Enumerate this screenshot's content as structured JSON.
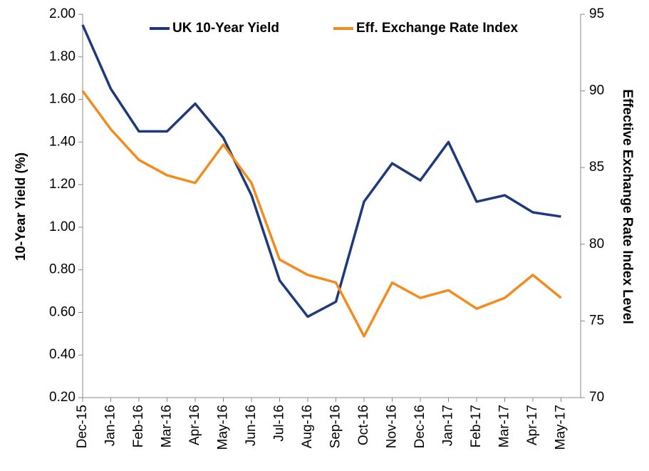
{
  "chart_data": {
    "type": "line",
    "categories": [
      "Dec-15",
      "Jan-16",
      "Feb-16",
      "Mar-16",
      "Apr-16",
      "May-16",
      "Jun-16",
      "Jul-16",
      "Aug-16",
      "Sep-16",
      "Oct-16",
      "Nov-16",
      "Dec-16",
      "Jan-17",
      "Feb-17",
      "Mar-17",
      "Apr-17",
      "May-17"
    ],
    "series": [
      {
        "name": "UK 10-Year Yield",
        "color": "#1f3a7a",
        "axis": "y",
        "values": [
          1.95,
          1.65,
          1.45,
          1.45,
          1.58,
          1.42,
          1.15,
          0.75,
          0.58,
          0.65,
          1.12,
          1.3,
          1.22,
          1.4,
          1.12,
          1.15,
          1.07,
          1.05
        ]
      },
      {
        "name": "Eff. Exchange Rate Index",
        "color": "#f28c1e",
        "axis": "y2",
        "values": [
          90,
          87.5,
          85.5,
          84.5,
          84,
          86.5,
          84,
          79,
          78,
          77.5,
          74,
          77.5,
          76.5,
          77,
          75.8,
          76.5,
          78,
          76.5
        ]
      }
    ],
    "ylabel": "10-Year Yield (%)",
    "y2label": "Effective Exchange Rate Index Level",
    "ylim": [
      0.2,
      2.0
    ],
    "yticks": [
      {
        "value": 0.2,
        "label": "0.20"
      },
      {
        "value": 0.4,
        "label": "0.40"
      },
      {
        "value": 0.6,
        "label": "0.60"
      },
      {
        "value": 0.8,
        "label": "0.80"
      },
      {
        "value": 1.0,
        "label": "1.00"
      },
      {
        "value": 1.2,
        "label": "1.20"
      },
      {
        "value": 1.4,
        "label": "1.40"
      },
      {
        "value": 1.6,
        "label": "1.60"
      },
      {
        "value": 1.8,
        "label": "1.80"
      },
      {
        "value": 2.0,
        "label": "2.00"
      }
    ],
    "y2lim": [
      70,
      95
    ],
    "y2ticks": [
      70,
      75,
      80,
      85,
      90,
      95
    ],
    "legend": "top"
  }
}
